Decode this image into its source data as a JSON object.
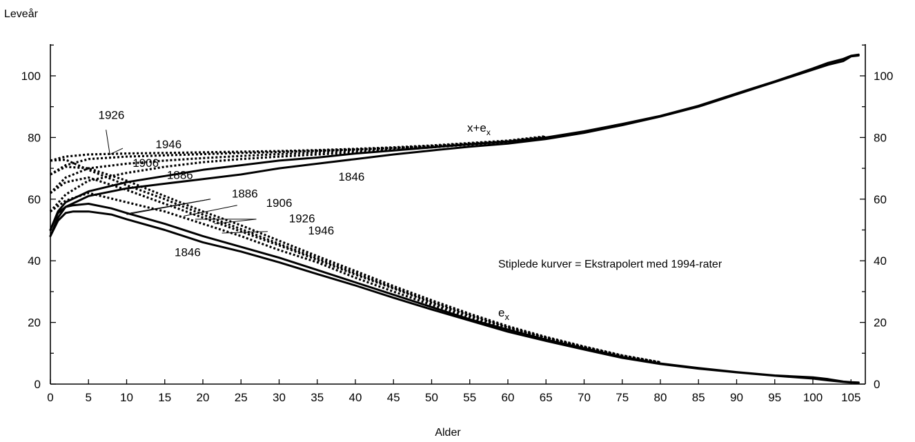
{
  "chart_data": {
    "type": "line",
    "ylabel": "Leveår",
    "xlabel": "Alder",
    "xlim": [
      0,
      107
    ],
    "ylim": [
      0,
      110
    ],
    "x_ticks": [
      0,
      5,
      10,
      15,
      20,
      25,
      30,
      35,
      40,
      45,
      50,
      55,
      60,
      65,
      70,
      75,
      80,
      85,
      90,
      95,
      100,
      105
    ],
    "y_ticks": [
      0,
      20,
      40,
      60,
      80,
      100
    ],
    "y_ticks_right": [
      0,
      20,
      40,
      60,
      80,
      100
    ],
    "grid": false,
    "annotation": "Stiplede kurver = Ekstrapolert med 1994-rater",
    "curve_group_labels": {
      "x_plus_ex": "x+e",
      "ex": "e",
      "subscript": "x"
    },
    "series": [
      {
        "name": "1846",
        "group": "ex",
        "style": "solid",
        "x": [
          0,
          1,
          2,
          3,
          5,
          8,
          10,
          15,
          20,
          25,
          30,
          35,
          40,
          45,
          50,
          55,
          60,
          65,
          70,
          75,
          80,
          85,
          90,
          95,
          100,
          102,
          104,
          105,
          106
        ],
        "y": [
          48,
          53,
          55.5,
          56,
          56,
          55,
          53.5,
          50,
          46,
          43,
          39.5,
          35.7,
          32,
          28,
          24.2,
          20.6,
          17,
          14,
          11.2,
          8.5,
          6.5,
          5,
          3.8,
          2.7,
          1.8,
          1.2,
          0.7,
          0.5,
          0.4
        ]
      },
      {
        "name": "1886",
        "group": "ex",
        "style": "solid",
        "x": [
          0,
          1,
          2,
          3,
          5,
          8,
          10,
          15,
          20,
          25,
          30,
          35,
          40,
          45,
          50,
          55,
          60,
          65,
          70,
          75,
          80,
          85,
          90,
          95,
          100,
          102,
          104,
          105,
          106
        ],
        "y": [
          50,
          55.5,
          57.5,
          58,
          58.5,
          57,
          55.5,
          52,
          48,
          44.5,
          41,
          37,
          33,
          29,
          25,
          21,
          17.7,
          14.4,
          11.6,
          8.8,
          6.7,
          5.2,
          3.9,
          2.8,
          2.2,
          1.6,
          0.8,
          0.6,
          0.5
        ]
      },
      {
        "name": "1886",
        "group": "ex",
        "style": "dotted",
        "x": [
          0,
          2,
          5,
          10,
          15,
          20,
          25,
          30,
          35,
          40,
          45,
          50,
          55,
          60,
          65,
          70,
          75,
          80
        ],
        "y": [
          56,
          59.5,
          62,
          59,
          56,
          52,
          48,
          43.5,
          39.5,
          34.5,
          30,
          25.7,
          21.7,
          18,
          14.8,
          11.8,
          9,
          6.9
        ]
      },
      {
        "name": "1906",
        "group": "ex",
        "style": "dotted",
        "x": [
          0,
          2,
          5,
          10,
          15,
          20,
          25,
          30,
          35,
          40,
          45,
          50,
          55,
          60,
          65,
          70,
          75,
          80
        ],
        "y": [
          62,
          65.5,
          67,
          63,
          58.5,
          54,
          49.5,
          45,
          40.3,
          35.5,
          31,
          26.4,
          22.2,
          18.3,
          15,
          12,
          9.2,
          7
        ]
      },
      {
        "name": "1926",
        "group": "ex",
        "style": "dotted",
        "x": [
          0,
          2,
          5,
          10,
          15,
          20,
          25,
          30,
          35,
          40,
          45,
          50,
          55,
          60,
          65,
          70,
          75,
          80
        ],
        "y": [
          68,
          70.5,
          70,
          66,
          61,
          56,
          51.5,
          46.5,
          41.5,
          36.7,
          31.8,
          27.2,
          22.8,
          18.8,
          15.3,
          12.2,
          9.3,
          7.1
        ]
      },
      {
        "name": "1946",
        "group": "ex",
        "style": "dotted",
        "x": [
          0,
          2,
          5,
          10,
          15,
          20,
          25,
          30,
          35,
          40,
          45,
          50,
          55,
          60,
          65,
          70,
          75,
          80
        ],
        "y": [
          72.5,
          72.8,
          69.5,
          64.5,
          60,
          55,
          50.3,
          45.5,
          40.8,
          36,
          31.3,
          26.8,
          22.6,
          18.6,
          15.1,
          12,
          9.2,
          7
        ]
      },
      {
        "name": "1846",
        "group": "x_plus_ex",
        "style": "solid",
        "x": [
          0,
          1,
          2,
          5,
          10,
          15,
          20,
          25,
          30,
          35,
          40,
          45,
          50,
          55,
          60,
          65,
          70,
          75,
          80,
          85,
          90,
          95,
          100,
          102,
          104,
          105,
          106
        ],
        "y": [
          48,
          54,
          57.5,
          61,
          63.5,
          65,
          66.5,
          68,
          70,
          71.5,
          73,
          74.5,
          75.8,
          77,
          78,
          79.5,
          81.5,
          84,
          86.8,
          90,
          94,
          98,
          102,
          103.6,
          104.8,
          106.3,
          106.6
        ]
      },
      {
        "name": "1886",
        "group": "x_plus_ex",
        "style": "solid",
        "x": [
          0,
          1,
          2,
          5,
          10,
          15,
          20,
          25,
          30,
          35,
          40,
          45,
          50,
          55,
          60,
          65,
          70,
          75,
          80,
          85,
          90,
          95,
          100,
          102,
          104,
          105,
          106
        ],
        "y": [
          50,
          56,
          59,
          62.5,
          65.5,
          67.5,
          69.5,
          71,
          72.5,
          73.5,
          74.8,
          75.8,
          76.8,
          77.8,
          78.7,
          80,
          82,
          84.4,
          87,
          90.3,
          94.3,
          98.2,
          102.4,
          104.2,
          105.5,
          106.5,
          106.9
        ]
      },
      {
        "name": "1886",
        "group": "x_plus_ex",
        "style": "dotted",
        "x": [
          0,
          2,
          5,
          10,
          15,
          20,
          25,
          30,
          35,
          40,
          45,
          50,
          55,
          60,
          65
        ],
        "y": [
          56,
          61.5,
          66,
          68.5,
          70.5,
          72,
          73,
          73.8,
          74.5,
          75.2,
          76,
          76.8,
          77.7,
          78.5,
          80
        ]
      },
      {
        "name": "1906",
        "group": "x_plus_ex",
        "style": "dotted",
        "x": [
          0,
          2,
          5,
          10,
          15,
          20,
          25,
          30,
          35,
          40,
          45,
          50,
          55,
          60,
          65
        ],
        "y": [
          62,
          67,
          70,
          71.5,
          72.5,
          73.3,
          74,
          74.6,
          75.2,
          75.8,
          76.3,
          77,
          77.8,
          78.6,
          80
        ]
      },
      {
        "name": "1926",
        "group": "x_plus_ex",
        "style": "dotted",
        "x": [
          0,
          2,
          5,
          10,
          15,
          20,
          25,
          30,
          35,
          40,
          45,
          50,
          55,
          60,
          65
        ],
        "y": [
          68,
          71,
          73,
          73.8,
          74.2,
          74.6,
          75,
          75.3,
          75.7,
          76.1,
          76.6,
          77.2,
          78,
          78.8,
          80.2
        ]
      },
      {
        "name": "1946",
        "group": "x_plus_ex",
        "style": "dotted",
        "x": [
          0,
          2,
          5,
          10,
          15,
          20,
          25,
          30,
          35,
          40,
          45,
          50,
          55,
          60,
          65
        ],
        "y": [
          72.5,
          73.8,
          74.5,
          74.8,
          75,
          75.2,
          75.4,
          75.6,
          75.9,
          76.3,
          76.8,
          77.4,
          78.2,
          79,
          80.4
        ]
      }
    ],
    "curve_labels": [
      {
        "text": "1926",
        "x": 8,
        "y": 86
      },
      {
        "text": "1946",
        "x": 15.5,
        "y": 76.5
      },
      {
        "text": "1906",
        "x": 12.5,
        "y": 70.5
      },
      {
        "text": "1886",
        "x": 17,
        "y": 66.5
      },
      {
        "text": "1846",
        "x": 39.5,
        "y": 66
      },
      {
        "text": "1886",
        "x": 25.5,
        "y": 60.5
      },
      {
        "text": "1906",
        "x": 30,
        "y": 57.5
      },
      {
        "text": "1926",
        "x": 33,
        "y": 52.5
      },
      {
        "text": "1946",
        "x": 35.5,
        "y": 48.5
      },
      {
        "text": "1846",
        "x": 18,
        "y": 41.5
      }
    ],
    "leader_lines": [
      {
        "from": [
          7.3,
          82.5
        ],
        "to": [
          7.8,
          74.5
        ]
      },
      {
        "from": [
          9.5,
          76.5
        ],
        "to": [
          7.8,
          74.5
        ]
      },
      {
        "from": [
          21,
          60
        ],
        "to": [
          10,
          55
        ]
      },
      {
        "from": [
          21,
          60
        ],
        "to": [
          10.5,
          55.5
        ]
      },
      {
        "from": [
          24.5,
          58
        ],
        "to": [
          17.5,
          54.5
        ]
      },
      {
        "from": [
          27,
          53.5
        ],
        "to": [
          19,
          53.5
        ]
      },
      {
        "from": [
          27,
          53.5
        ],
        "to": [
          21.5,
          52
        ]
      },
      {
        "from": [
          28.5,
          49.5
        ],
        "to": [
          22.5,
          49
        ]
      }
    ]
  }
}
